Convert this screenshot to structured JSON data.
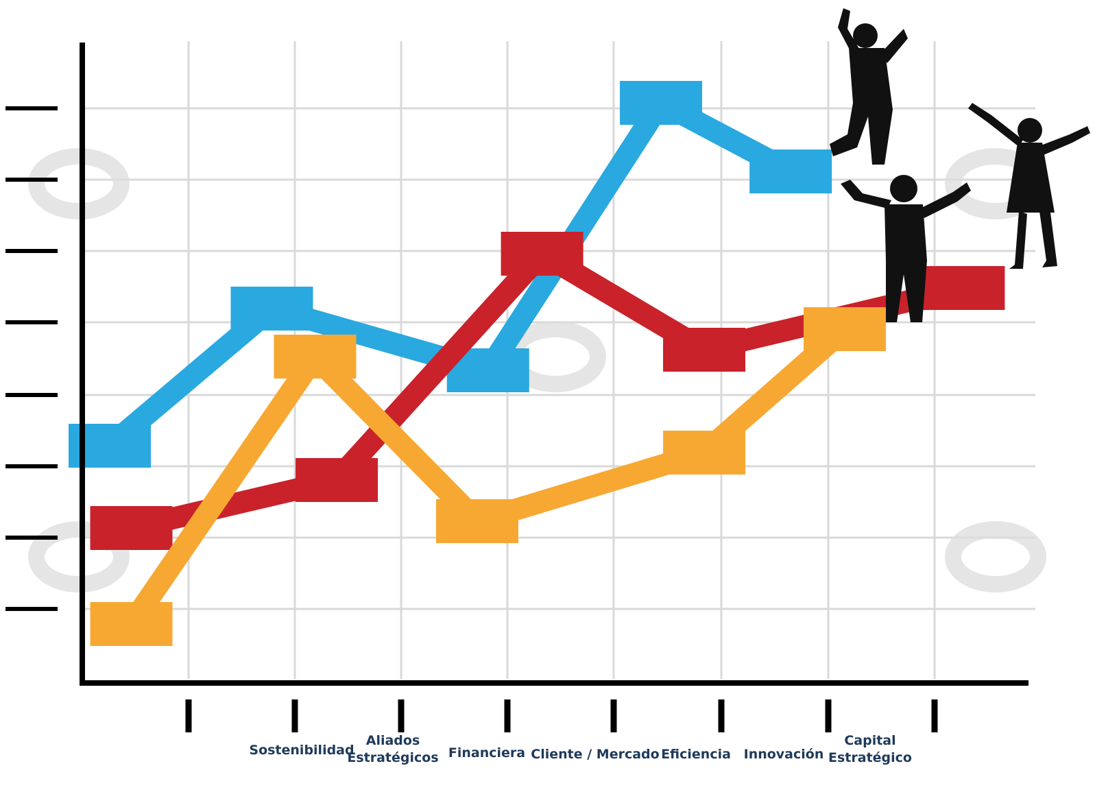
{
  "chart_data": {
    "type": "line",
    "title": "",
    "xlabel": "",
    "ylabel": "",
    "categories": [
      "Sostenibilidad",
      "Aliados Estratégicos",
      "Financiera",
      "Cliente / Mercado",
      "Eficiencia",
      "Innovación",
      "Capital Estratégico"
    ],
    "x": [
      0,
      1.5,
      2.5,
      3.5,
      4.3,
      5,
      6,
      6.8,
      7.7
    ],
    "ylim": [
      0,
      8.5
    ],
    "grid": true,
    "legend": "none",
    "series": [
      {
        "color": "#2aa8e0",
        "points": [
          [
            0,
            3
          ],
          [
            1.5,
            5
          ],
          [
            3.5,
            4.1
          ],
          [
            5.1,
            8
          ],
          [
            6.3,
            7
          ]
        ]
      },
      {
        "color": "#c9222a",
        "points": [
          [
            0.2,
            1.8
          ],
          [
            2.1,
            2.5
          ],
          [
            4,
            5.8
          ],
          [
            5.5,
            4.4
          ],
          [
            7.9,
            5.3
          ]
        ]
      },
      {
        "color": "#f7a833",
        "points": [
          [
            0.2,
            0.4
          ],
          [
            1.9,
            4.3
          ],
          [
            3.4,
            1.9
          ],
          [
            5.5,
            2.9
          ],
          [
            6.8,
            4.7
          ]
        ]
      }
    ],
    "decorations": [
      "business-people-celebrating-silhouettes"
    ]
  }
}
